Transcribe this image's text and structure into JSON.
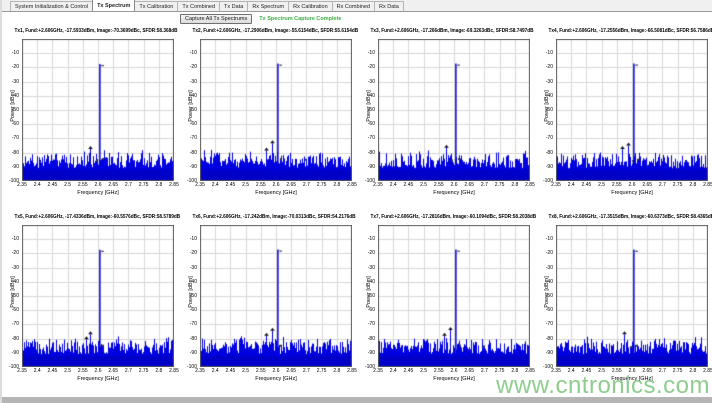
{
  "tabs": {
    "items": [
      {
        "label": "System Initialization & Control",
        "active": false
      },
      {
        "label": "Tx Spectrum",
        "active": true
      },
      {
        "label": "Tx Calibration",
        "active": false
      },
      {
        "label": "Tx Combined",
        "active": false
      },
      {
        "label": "Tx Data",
        "active": false
      },
      {
        "label": "Rx Spectrum",
        "active": false
      },
      {
        "label": "Rx Calibration",
        "active": false
      },
      {
        "label": "Rx Combined",
        "active": false
      },
      {
        "label": "Rx Data",
        "active": false
      }
    ]
  },
  "controls": {
    "capture_button_label": "Capture All Tx Spectrums",
    "status_text": "Tx Spectrum Capture Complete"
  },
  "watermark": "www.cntronics.com",
  "colors": {
    "spectrum_blue": "#0000e0",
    "spectrum_blue_dense": "#0000c8",
    "grid": "#d8d8d8",
    "axis_border": "#5a5a5a",
    "marker_black": "#111111",
    "status_green": "#3cb043",
    "watermark_green": "#74c274"
  },
  "chart_axes": {
    "xlabel": "Frequency [GHz]",
    "ylabel": "Power [dBm]",
    "xlim": [
      2.35,
      2.85
    ],
    "ylim": [
      0,
      -100
    ],
    "xticks": [
      "2.35",
      "2.4",
      "2.45",
      "2.5",
      "2.55",
      "2.6",
      "2.65",
      "2.7",
      "2.75",
      "2.8",
      "2.85"
    ],
    "yticks": [
      "-10",
      "-20",
      "-30",
      "-40",
      "-50",
      "-60",
      "-70",
      "-80",
      "-90",
      "-100"
    ],
    "grid": true,
    "legend": false
  },
  "chart_data": [
    {
      "type": "line",
      "name": "tx1",
      "title": "Tx1, Fund:+2.606GHz, -17.5933dBm, Image:-70.3699dBc, SFDR:58.368dB",
      "fund": {
        "freq_ghz": 2.606,
        "power_dbm": -17.59
      },
      "noise_floor_dbm": -90,
      "seed": 11,
      "spurs": [
        {
          "freq_ghz": 2.575,
          "power_dbm": -77.5
        },
        {
          "freq_ghz": 2.596,
          "power_dbm": -85.5
        },
        {
          "freq_ghz": 2.616,
          "power_dbm": -84.5
        }
      ]
    },
    {
      "type": "line",
      "name": "tx2",
      "title": "Tx2, Fund:+2.606GHz, -17.2906dBm, Image:-55.6154dBc, SFDR:55.6154dB",
      "fund": {
        "freq_ghz": 2.606,
        "power_dbm": -17.29
      },
      "noise_floor_dbm": -90,
      "seed": 22,
      "spurs": [
        {
          "freq_ghz": 2.566,
          "power_dbm": -78.5
        },
        {
          "freq_ghz": 2.586,
          "power_dbm": -73.5
        },
        {
          "freq_ghz": 2.616,
          "power_dbm": -84.5
        },
        {
          "freq_ghz": 2.7,
          "power_dbm": -85.0
        }
      ]
    },
    {
      "type": "line",
      "name": "tx3",
      "title": "Tx3, Fund:+2.606GHz, -17.266dBm, Image:-69.3263dBc, SFDR:58.7497dB",
      "fund": {
        "freq_ghz": 2.606,
        "power_dbm": -17.27
      },
      "noise_floor_dbm": -90,
      "seed": 33,
      "spurs": [
        {
          "freq_ghz": 2.575,
          "power_dbm": -76.5
        },
        {
          "freq_ghz": 2.592,
          "power_dbm": -85.5
        },
        {
          "freq_ghz": 2.616,
          "power_dbm": -84.5
        }
      ]
    },
    {
      "type": "line",
      "name": "tx4",
      "title": "Tx4, Fund:+2.606GHz, -17.2556dBm, Image:-66.5081dBc, SFDR:56.7586dB",
      "fund": {
        "freq_ghz": 2.606,
        "power_dbm": -17.26
      },
      "noise_floor_dbm": -90,
      "seed": 44,
      "spurs": [
        {
          "freq_ghz": 2.566,
          "power_dbm": -77.5
        },
        {
          "freq_ghz": 2.586,
          "power_dbm": -75.0
        },
        {
          "freq_ghz": 2.602,
          "power_dbm": -86.0
        },
        {
          "freq_ghz": 2.62,
          "power_dbm": -85.0
        }
      ]
    },
    {
      "type": "line",
      "name": "tx5",
      "title": "Tx5, Fund:+2.606GHz, -17.4336dBm, Image:-60.5576dBc, SFDR:58.5789dB",
      "fund": {
        "freq_ghz": 2.606,
        "power_dbm": -17.43
      },
      "noise_floor_dbm": -90,
      "seed": 55,
      "spurs": [
        {
          "freq_ghz": 2.56,
          "power_dbm": -80.5
        },
        {
          "freq_ghz": 2.575,
          "power_dbm": -77.0
        },
        {
          "freq_ghz": 2.616,
          "power_dbm": -85.0
        }
      ]
    },
    {
      "type": "line",
      "name": "tx6",
      "title": "Tx6, Fund:+2.606GHz, -17.242dBm, Image:-70.0313dBc, SFDR:54.2176dB",
      "fund": {
        "freq_ghz": 2.606,
        "power_dbm": -17.24
      },
      "noise_floor_dbm": -90,
      "seed": 66,
      "spurs": [
        {
          "freq_ghz": 2.566,
          "power_dbm": -78.0
        },
        {
          "freq_ghz": 2.586,
          "power_dbm": -74.5
        },
        {
          "freq_ghz": 2.616,
          "power_dbm": -85.0
        }
      ]
    },
    {
      "type": "line",
      "name": "tx7",
      "title": "Tx7, Fund:+2.606GHz, -17.2816dBm, Image:-60.1094dBc, SFDR:58.2038dB",
      "fund": {
        "freq_ghz": 2.606,
        "power_dbm": -17.28
      },
      "noise_floor_dbm": -90,
      "seed": 77,
      "spurs": [
        {
          "freq_ghz": 2.566,
          "power_dbm": -78.0
        },
        {
          "freq_ghz": 2.586,
          "power_dbm": -74.0
        },
        {
          "freq_ghz": 2.62,
          "power_dbm": -85.0
        },
        {
          "freq_ghz": 2.7,
          "power_dbm": -85.5
        }
      ]
    },
    {
      "type": "line",
      "name": "tx8",
      "title": "Tx8, Fund:+2.606GHz, -17.3515dBm, Image:-60.6373dBc, SFDR:58.4365dB",
      "fund": {
        "freq_ghz": 2.606,
        "power_dbm": -17.35
      },
      "noise_floor_dbm": -90,
      "seed": 88,
      "spurs": [
        {
          "freq_ghz": 2.575,
          "power_dbm": -77.0
        },
        {
          "freq_ghz": 2.596,
          "power_dbm": -86.0
        },
        {
          "freq_ghz": 2.616,
          "power_dbm": -85.0
        }
      ]
    }
  ]
}
